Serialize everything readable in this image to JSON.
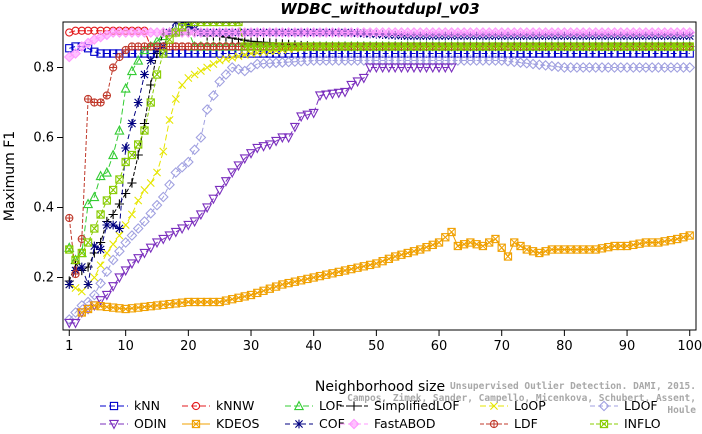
{
  "chart_data": {
    "type": "line",
    "title": "WDBC_withoutdupl_v03",
    "xlabel": "Neighborhood size",
    "ylabel": "Maximum F1",
    "xlim": [
      0,
      101
    ],
    "ylim": [
      0.05,
      0.93
    ],
    "xticks": [
      1,
      10,
      20,
      30,
      40,
      50,
      60,
      70,
      80,
      90,
      100
    ],
    "yticks": [
      0.2,
      0.4,
      0.6,
      0.8
    ],
    "grid": false,
    "legend_position": "bottom",
    "series": [
      {
        "name": "kNN",
        "color": "#0000cc",
        "marker": "square",
        "dash": "6,3",
        "points": [
          [
            1,
            0.855
          ],
          [
            2,
            0.86
          ],
          [
            3,
            0.86
          ],
          [
            4,
            0.855
          ],
          [
            5,
            0.845
          ],
          [
            6,
            0.84
          ],
          [
            100,
            0.84
          ]
        ]
      },
      {
        "name": "kNNW",
        "color": "#e31a1c",
        "marker": "circle",
        "dash": "6,3",
        "points": [
          [
            1,
            0.9
          ],
          [
            2,
            0.905
          ],
          [
            3,
            0.905
          ],
          [
            8,
            0.905
          ],
          [
            9,
            0.905
          ],
          [
            10,
            0.905
          ],
          [
            13,
            0.905
          ],
          [
            14,
            0.86
          ],
          [
            15,
            0.86
          ],
          [
            100,
            0.86
          ]
        ]
      },
      {
        "name": "LOF",
        "color": "#33cc33",
        "marker": "triangle",
        "dash": "6,3",
        "points": [
          [
            1,
            0.285
          ],
          [
            2,
            0.25
          ],
          [
            3,
            0.27
          ],
          [
            4,
            0.41
          ],
          [
            5,
            0.43
          ],
          [
            6,
            0.49
          ],
          [
            7,
            0.5
          ],
          [
            8,
            0.55
          ],
          [
            9,
            0.62
          ],
          [
            10,
            0.74
          ],
          [
            11,
            0.79
          ],
          [
            12,
            0.82
          ],
          [
            13,
            0.85
          ],
          [
            14,
            0.86
          ],
          [
            15,
            0.875
          ],
          [
            16,
            0.89
          ],
          [
            17,
            0.9
          ],
          [
            18,
            0.905
          ],
          [
            19,
            0.905
          ],
          [
            20,
            0.905
          ],
          [
            21,
            0.86
          ],
          [
            100,
            0.86
          ]
        ]
      },
      {
        "name": "SimplifiedLOF",
        "color": "#000000",
        "marker": "plus",
        "dash": "4,2",
        "points": [
          [
            1,
            0.19
          ],
          [
            2,
            0.24
          ],
          [
            3,
            0.22
          ],
          [
            4,
            0.23
          ],
          [
            5,
            0.27
          ],
          [
            6,
            0.3
          ],
          [
            7,
            0.36
          ],
          [
            8,
            0.38
          ],
          [
            9,
            0.41
          ],
          [
            10,
            0.44
          ],
          [
            11,
            0.47
          ],
          [
            12,
            0.55
          ],
          [
            13,
            0.64
          ],
          [
            14,
            0.75
          ],
          [
            15,
            0.84
          ],
          [
            16,
            0.9
          ],
          [
            17,
            0.9
          ],
          [
            22,
            0.9
          ],
          [
            23,
            0.89
          ],
          [
            24,
            0.89
          ],
          [
            25,
            0.89
          ],
          [
            30,
            0.875
          ],
          [
            40,
            0.86
          ],
          [
            100,
            0.86
          ]
        ]
      },
      {
        "name": "LoOP",
        "color": "#e6e600",
        "marker": "cross",
        "dash": "6,3",
        "points": [
          [
            1,
            0.18
          ],
          [
            3,
            0.16
          ],
          [
            5,
            0.2
          ],
          [
            7,
            0.27
          ],
          [
            9,
            0.32
          ],
          [
            11,
            0.38
          ],
          [
            12,
            0.42
          ],
          [
            13,
            0.45
          ],
          [
            14,
            0.47
          ],
          [
            15,
            0.5
          ],
          [
            16,
            0.56
          ],
          [
            17,
            0.65
          ],
          [
            18,
            0.71
          ],
          [
            19,
            0.75
          ],
          [
            20,
            0.77
          ],
          [
            22,
            0.79
          ],
          [
            25,
            0.82
          ],
          [
            30,
            0.84
          ],
          [
            40,
            0.86
          ],
          [
            100,
            0.86
          ]
        ]
      },
      {
        "name": "LDOF",
        "color": "#a0a0e0",
        "marker": "diamond",
        "dash": "5,3",
        "points": [
          [
            1,
            0.08
          ],
          [
            2,
            0.1
          ],
          [
            3,
            0.12
          ],
          [
            4,
            0.13
          ],
          [
            5,
            0.15
          ],
          [
            8,
            0.25
          ],
          [
            10,
            0.3
          ],
          [
            13,
            0.36
          ],
          [
            16,
            0.43
          ],
          [
            18,
            0.5
          ],
          [
            20,
            0.53
          ],
          [
            22,
            0.6
          ],
          [
            23,
            0.68
          ],
          [
            25,
            0.76
          ],
          [
            27,
            0.8
          ],
          [
            29,
            0.79
          ],
          [
            31,
            0.81
          ],
          [
            40,
            0.82
          ],
          [
            50,
            0.82
          ],
          [
            70,
            0.82
          ],
          [
            80,
            0.8
          ],
          [
            90,
            0.8
          ],
          [
            100,
            0.8
          ]
        ]
      },
      {
        "name": "ODIN",
        "color": "#7b2fbe",
        "marker": "triangle-down",
        "dash": "6,3",
        "points": [
          [
            1,
            0.07
          ],
          [
            2,
            0.07
          ],
          [
            3,
            0.1
          ],
          [
            5,
            0.12
          ],
          [
            7,
            0.15
          ],
          [
            9,
            0.2
          ],
          [
            11,
            0.24
          ],
          [
            13,
            0.27
          ],
          [
            15,
            0.3
          ],
          [
            17,
            0.32
          ],
          [
            19,
            0.34
          ],
          [
            21,
            0.36
          ],
          [
            23,
            0.4
          ],
          [
            25,
            0.45
          ],
          [
            27,
            0.5
          ],
          [
            29,
            0.54
          ],
          [
            31,
            0.57
          ],
          [
            33,
            0.58
          ],
          [
            35,
            0.6
          ],
          [
            36,
            0.6
          ],
          [
            37,
            0.63
          ],
          [
            38,
            0.66
          ],
          [
            40,
            0.67
          ],
          [
            41,
            0.72
          ],
          [
            45,
            0.73
          ],
          [
            46,
            0.75
          ],
          [
            48,
            0.77
          ],
          [
            49,
            0.8
          ],
          [
            50,
            0.8
          ],
          [
            62,
            0.8
          ]
        ]
      },
      {
        "name": "KDEOS",
        "color": "#f0a000",
        "marker": "square-x",
        "dash": "",
        "points": [
          [
            3,
            0.1
          ],
          [
            5,
            0.12
          ],
          [
            10,
            0.11
          ],
          [
            15,
            0.12
          ],
          [
            20,
            0.13
          ],
          [
            25,
            0.13
          ],
          [
            30,
            0.15
          ],
          [
            35,
            0.18
          ],
          [
            40,
            0.2
          ],
          [
            45,
            0.22
          ],
          [
            50,
            0.24
          ],
          [
            53,
            0.26
          ],
          [
            55,
            0.27
          ],
          [
            57,
            0.28
          ],
          [
            60,
            0.3
          ],
          [
            62,
            0.33
          ],
          [
            63,
            0.29
          ],
          [
            65,
            0.3
          ],
          [
            67,
            0.29
          ],
          [
            69,
            0.31
          ],
          [
            71,
            0.26
          ],
          [
            72,
            0.3
          ],
          [
            74,
            0.28
          ],
          [
            76,
            0.27
          ],
          [
            78,
            0.28
          ],
          [
            80,
            0.28
          ],
          [
            85,
            0.28
          ],
          [
            88,
            0.29
          ],
          [
            90,
            0.29
          ],
          [
            93,
            0.3
          ],
          [
            95,
            0.3
          ],
          [
            98,
            0.31
          ],
          [
            100,
            0.32
          ]
        ]
      },
      {
        "name": "COF",
        "color": "#000080",
        "marker": "asterisk",
        "dash": "5,3",
        "points": [
          [
            1,
            0.18
          ],
          [
            2,
            0.22
          ],
          [
            3,
            0.23
          ],
          [
            4,
            0.18
          ],
          [
            5,
            0.29
          ],
          [
            6,
            0.28
          ],
          [
            7,
            0.35
          ],
          [
            8,
            0.35
          ],
          [
            9,
            0.34
          ],
          [
            10,
            0.57
          ],
          [
            11,
            0.64
          ],
          [
            12,
            0.7
          ],
          [
            13,
            0.78
          ],
          [
            14,
            0.82
          ],
          [
            15,
            0.85
          ],
          [
            16,
            0.86
          ],
          [
            17,
            0.9
          ],
          [
            18,
            0.93
          ],
          [
            19,
            0.93
          ],
          [
            20,
            0.92
          ],
          [
            22,
            0.9
          ],
          [
            25,
            0.9
          ],
          [
            35,
            0.9
          ],
          [
            45,
            0.9
          ],
          [
            55,
            0.89
          ],
          [
            65,
            0.89
          ],
          [
            75,
            0.89
          ],
          [
            85,
            0.89
          ],
          [
            95,
            0.89
          ],
          [
            100,
            0.89
          ]
        ]
      },
      {
        "name": "FastABOD",
        "color": "#ff99ff",
        "marker": "diamond-filled",
        "dash": "5,3",
        "points": [
          [
            1,
            0.83
          ],
          [
            2,
            0.84
          ],
          [
            3,
            0.86
          ],
          [
            5,
            0.88
          ],
          [
            8,
            0.9
          ],
          [
            12,
            0.9
          ],
          [
            20,
            0.9
          ],
          [
            40,
            0.9
          ],
          [
            60,
            0.9
          ],
          [
            80,
            0.9
          ],
          [
            100,
            0.9
          ]
        ]
      },
      {
        "name": "LDF",
        "color": "#c0392b",
        "marker": "circle-plus",
        "dash": "4,2",
        "points": [
          [
            1,
            0.37
          ],
          [
            2,
            0.21
          ],
          [
            3,
            0.31
          ],
          [
            4,
            0.71
          ],
          [
            5,
            0.7
          ],
          [
            6,
            0.7
          ],
          [
            7,
            0.72
          ],
          [
            8,
            0.8
          ],
          [
            9,
            0.83
          ],
          [
            10,
            0.85
          ],
          [
            11,
            0.86
          ],
          [
            100,
            0.86
          ]
        ]
      },
      {
        "name": "INFLO",
        "color": "#88cc00",
        "marker": "square-x",
        "dash": "4,2",
        "points": [
          [
            1,
            0.28
          ],
          [
            2,
            0.25
          ],
          [
            3,
            0.27
          ],
          [
            4,
            0.3
          ],
          [
            5,
            0.34
          ],
          [
            6,
            0.38
          ],
          [
            7,
            0.42
          ],
          [
            8,
            0.45
          ],
          [
            9,
            0.48
          ],
          [
            10,
            0.53
          ],
          [
            11,
            0.55
          ],
          [
            12,
            0.58
          ],
          [
            13,
            0.62
          ],
          [
            14,
            0.7
          ],
          [
            15,
            0.78
          ],
          [
            16,
            0.84
          ],
          [
            17,
            0.88
          ],
          [
            18,
            0.9
          ],
          [
            20,
            0.93
          ],
          [
            22,
            0.93
          ],
          [
            25,
            0.93
          ],
          [
            26,
            0.93
          ],
          [
            27,
            0.93
          ],
          [
            28,
            0.93
          ],
          [
            29,
            0.86
          ],
          [
            100,
            0.86
          ]
        ]
      }
    ]
  },
  "watermark": {
    "line1": "Unsupervised Outlier Detection. DAMI, 2015.",
    "line2": "Campos, Zimek, Sander, Campello, Micenkova, Schubert, Assent, Houle"
  }
}
